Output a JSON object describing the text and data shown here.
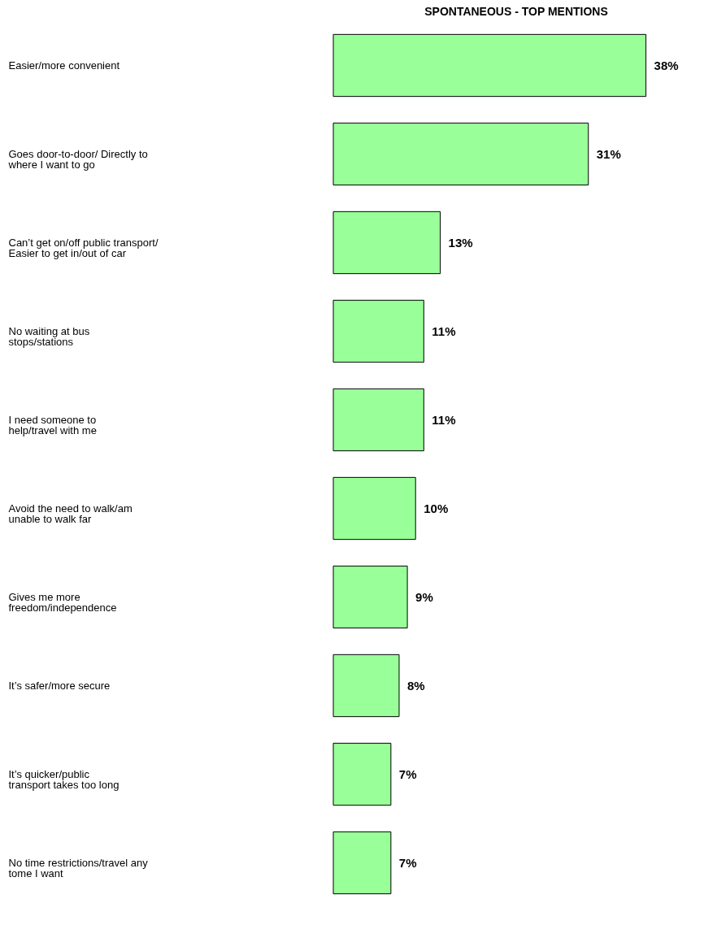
{
  "chart_data": {
    "type": "bar",
    "orientation": "horizontal",
    "title": "SPONTANEOUS - TOP MENTIONS",
    "categories": [
      "Easier/more convenient",
      "Goes door-to-door/ Directly to\nwhere I want to go",
      "Can’t get on/off public transport/\nEasier to get in/out of car",
      "No waiting at bus\nstops/stations",
      "I need someone to\nhelp/travel with me",
      "Avoid the need to walk/am\nunable to walk far",
      "Gives me more\nfreedom/independence",
      "It’s safer/more secure",
      "It’s quicker/public\ntransport takes too long",
      "No time restrictions/travel any\ntome I want"
    ],
    "values": [
      38,
      31,
      13,
      11,
      11,
      10,
      9,
      8,
      7,
      7
    ],
    "value_labels": [
      "38%",
      "31%",
      "13%",
      "11%",
      "11%",
      "10%",
      "9%",
      "8%",
      "7%",
      "7%"
    ],
    "color": "#99ff99",
    "grid": false
  }
}
